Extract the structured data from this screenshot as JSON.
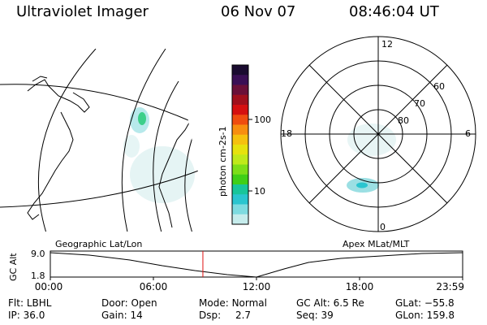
{
  "header": {
    "title": "Ultraviolet Imager",
    "date": "06 Nov 07",
    "time": "08:46:04 UT"
  },
  "colorbar": {
    "unit_label": "photon cm-2s-1",
    "tick_100": "100",
    "tick_10": "10",
    "colors": [
      "#1a0b30",
      "#3a0f55",
      "#6a1038",
      "#a0101c",
      "#d51010",
      "#ef4d10",
      "#f78e10",
      "#f5c10e",
      "#e6e20d",
      "#bfe91a",
      "#7dde18",
      "#3fcf17",
      "#18c59a",
      "#2ac5cf",
      "#7edbe0",
      "#c6ecec"
    ]
  },
  "polar": {
    "mlt_top": "12",
    "mlt_left": "18",
    "mlt_right": "6",
    "mlt_bottom": "0",
    "lat_60": "60",
    "lat_70": "70",
    "lat_80": "80"
  },
  "timeline": {
    "left_title": "Geographic Lat/Lon",
    "right_title": "Apex MLat/MLT",
    "y_axis_label": "GC Alt",
    "y_max": "9.0",
    "y_min": "1.8",
    "x_ticks": [
      "00:00",
      "06:00",
      "12:00",
      "18:00",
      "23:59"
    ],
    "marker_fraction": 0.37
  },
  "info": {
    "filter_label": "Flt:",
    "filter_value": "LBHL",
    "ip_label": "IP:",
    "ip_value": "36.0",
    "door_label": "Door:",
    "door_value": "Open",
    "gain_label": "Gain:",
    "gain_value": "14",
    "mode_label": "Mode:",
    "mode_value": "Normal",
    "dsp_label": "Dsp:",
    "dsp_value": "2.7",
    "gcalt_label": "GC Alt:",
    "gcalt_value": "6.5 Re",
    "seq_label": "Seq:",
    "seq_value": "39",
    "glat_label": "GLat:",
    "glat_value": "−55.8",
    "glon_label": "GLon:",
    "glon_value": "159.8"
  }
}
